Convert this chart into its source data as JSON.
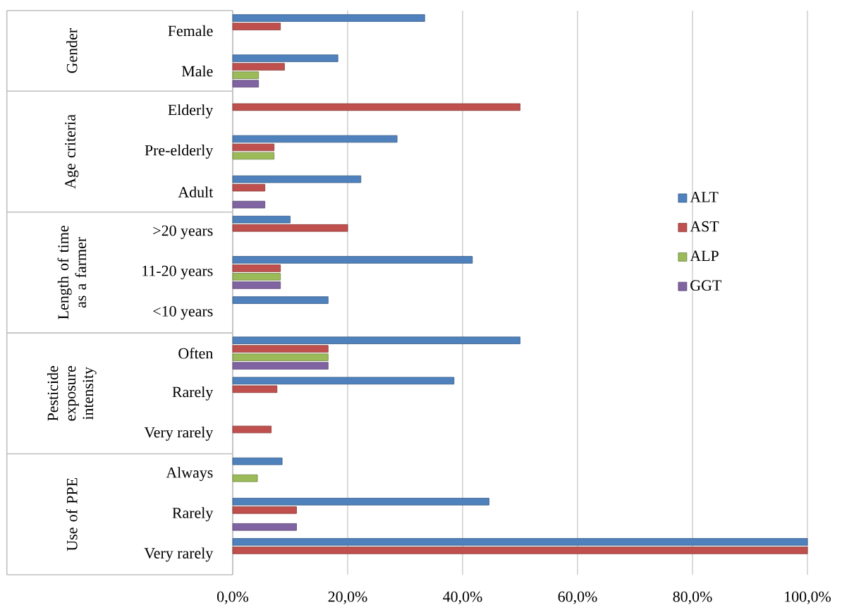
{
  "chart_data": {
    "type": "bar",
    "orientation": "horizontal",
    "categories": [
      "Female",
      "Male",
      "Elderly",
      "Pre-elderly",
      "Adult",
      ">20 years",
      "11-20 years",
      "<10 years",
      "Often",
      "Rarely",
      "Very rarely",
      "Always",
      "Rarely",
      "Very rarely"
    ],
    "series": [
      {
        "name": "ALT",
        "color": "#4f81bd",
        "values": [
          33.4,
          18.3,
          null,
          28.6,
          22.3,
          10.0,
          41.7,
          16.6,
          50.0,
          38.5,
          null,
          8.6,
          44.6,
          100.0
        ]
      },
      {
        "name": "AST",
        "color": "#c0504d",
        "values": [
          8.3,
          9.0,
          50.0,
          7.2,
          5.6,
          20.0,
          8.3,
          null,
          16.6,
          7.7,
          6.7,
          null,
          11.1,
          100.0
        ]
      },
      {
        "name": "ALP",
        "color": "#9bbb59",
        "values": [
          null,
          4.5,
          null,
          7.2,
          null,
          null,
          8.3,
          null,
          16.6,
          null,
          null,
          4.3,
          null,
          null
        ]
      },
      {
        "name": "GGT",
        "color": "#8064a2",
        "values": [
          null,
          4.5,
          null,
          null,
          5.6,
          null,
          8.3,
          null,
          16.6,
          null,
          null,
          null,
          11.1,
          null
        ]
      }
    ],
    "xlim": [
      0,
      100
    ],
    "xticks": [
      {
        "value": 0,
        "label": "0,0%"
      },
      {
        "value": 20,
        "label": "20,0%"
      },
      {
        "value": 40,
        "label": "40,0%"
      },
      {
        "value": 60,
        "label": "60,0%"
      },
      {
        "value": 80,
        "label": "80,0%"
      },
      {
        "value": 100,
        "label": "100,0%"
      }
    ],
    "grid": "x",
    "legend": "right",
    "annotations": [
      "Gender",
      "Age criteria",
      "Length of time as a farmer",
      "Pesticide exposure intensity",
      "Use of PPE"
    ]
  }
}
